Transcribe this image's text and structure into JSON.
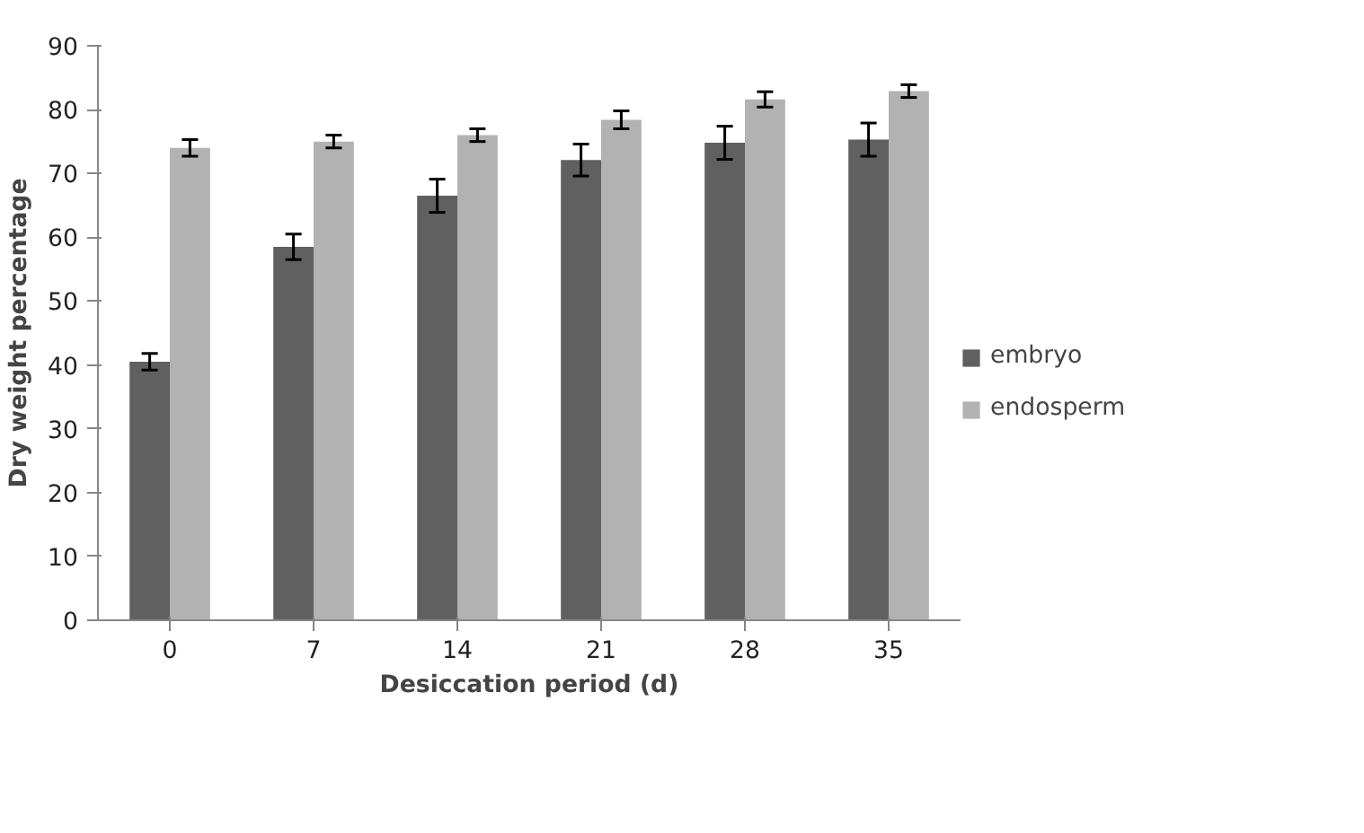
{
  "chart_data": {
    "type": "bar",
    "xlabel": "Desiccation period (d)",
    "ylabel": "Dry weight percentage",
    "categories": [
      "0",
      "7",
      "14",
      "21",
      "28",
      "35"
    ],
    "series": [
      {
        "name": "embryo",
        "color": "#606060",
        "values": [
          40.5,
          58.5,
          66.5,
          72.1,
          74.8,
          75.3
        ],
        "errors": [
          1.3,
          2,
          2.6,
          2.5,
          2.6,
          2.6
        ]
      },
      {
        "name": "endosperm",
        "color": "#b2b2b2",
        "values": [
          74,
          75,
          76,
          78.4,
          81.6,
          82.9
        ],
        "errors": [
          1.3,
          1,
          1,
          1.4,
          1.2,
          1
        ]
      }
    ],
    "ylim": [
      0,
      90
    ],
    "yticks": [
      0,
      10,
      20,
      30,
      40,
      50,
      60,
      70,
      80,
      90
    ],
    "grid": false,
    "legend": "right"
  }
}
